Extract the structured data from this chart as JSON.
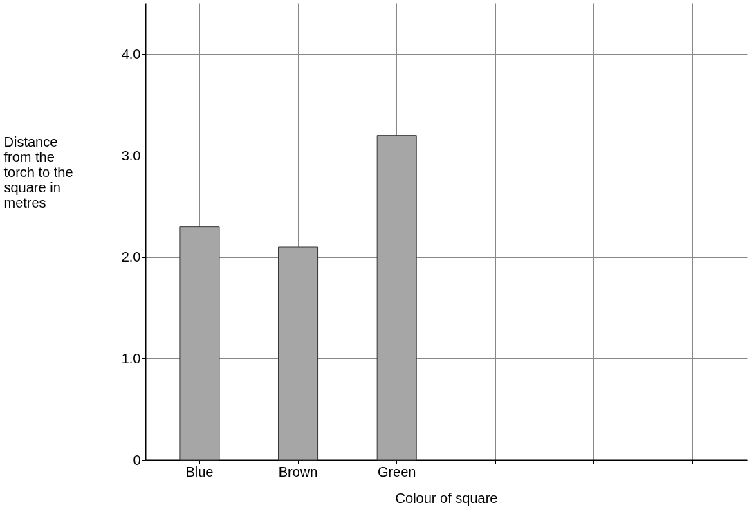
{
  "chart_data": {
    "type": "bar",
    "xlabel": "Colour of square",
    "ylabel": "Distance from the torch to the square in metres",
    "categories": [
      "Blue",
      "Brown",
      "Green",
      null,
      null,
      null
    ],
    "values": [
      2.3,
      2.1,
      3.2,
      null,
      null,
      null
    ],
    "color": "#a6a6a6",
    "ylim": [
      0,
      4.5
    ],
    "yticks": [
      0,
      {
        "value": 1,
        "label": "1.0"
      },
      {
        "value": 2,
        "label": "2.0"
      },
      {
        "value": 3,
        "label": "3.0"
      },
      {
        "value": 4,
        "label": "4.0"
      }
    ],
    "grid": true
  }
}
